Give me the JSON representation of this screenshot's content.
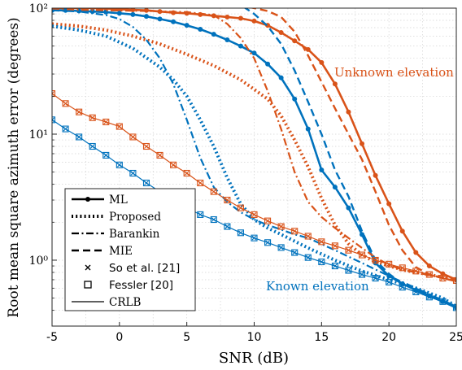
{
  "chart_data": {
    "type": "line",
    "xlabel": "SNR (dB)",
    "ylabel": "Root mean square azimuth error (degrees)",
    "xlim": [
      -5,
      25
    ],
    "ylim": [
      0.3,
      100
    ],
    "yscale": "log",
    "grid": true,
    "x_ticks": [
      -5,
      0,
      5,
      10,
      15,
      20,
      25
    ],
    "x_tick_labels": [
      "-5",
      "0",
      "5",
      "10",
      "15",
      "20",
      "25"
    ],
    "y_ticks": [
      1,
      10,
      100
    ],
    "y_tick_labels": [
      "10⁰",
      "10¹",
      "10²"
    ],
    "colors": {
      "unknown": "#D95319",
      "known": "#0072BD"
    },
    "annotations": [
      {
        "text": "Unknown elevation",
        "color": "#D95319"
      },
      {
        "text": "Known elevation",
        "color": "#0072BD"
      }
    ],
    "legend": {
      "placement": "bottom-left",
      "entries": [
        {
          "label": "ML",
          "line": "solid-thick",
          "marker": "dot"
        },
        {
          "label": "Proposed",
          "line": "dotted",
          "marker": "none"
        },
        {
          "label": "Barankin",
          "line": "dashdot",
          "marker": "none"
        },
        {
          "label": "MIE",
          "line": "dashed",
          "marker": "none"
        },
        {
          "label": "So et al. [21]",
          "line": "none",
          "marker": "x"
        },
        {
          "label": "Fessler [20]",
          "line": "none",
          "marker": "square"
        },
        {
          "label": "CRLB",
          "line": "solid-thin",
          "marker": "none"
        }
      ]
    },
    "series": [
      {
        "group": "unknown",
        "style": "ml",
        "x": [
          -5,
          -4,
          -3,
          -2,
          -1,
          0,
          1,
          2,
          3,
          4,
          5,
          6,
          7,
          8,
          9,
          10,
          11,
          12,
          13,
          14,
          15,
          16,
          17,
          18,
          19,
          20,
          21,
          22,
          23,
          24,
          25
        ],
        "values": [
          100,
          100,
          100,
          100,
          99,
          98,
          97,
          96,
          94,
          92,
          91,
          89,
          87,
          85,
          83,
          79,
          73,
          64,
          55,
          47,
          37,
          25,
          15,
          8.4,
          4.7,
          2.8,
          1.7,
          1.15,
          0.9,
          0.78,
          0.7
        ]
      },
      {
        "group": "known",
        "style": "ml",
        "x": [
          -5,
          -4,
          -3,
          -2,
          -1,
          0,
          1,
          2,
          3,
          4,
          5,
          6,
          7,
          8,
          9,
          10,
          11,
          12,
          13,
          14,
          15,
          16,
          17,
          18,
          19,
          20,
          21,
          22,
          23,
          24,
          25
        ],
        "values": [
          96,
          96,
          95,
          94,
          93,
          91,
          89,
          86,
          82,
          78,
          73,
          68,
          62,
          56,
          50,
          44,
          36,
          28,
          19,
          11,
          5.2,
          3.8,
          2.6,
          1.6,
          0.95,
          0.75,
          0.65,
          0.58,
          0.52,
          0.47,
          0.42
        ]
      },
      {
        "group": "unknown",
        "style": "proposed",
        "x": [
          -5,
          -3,
          -1,
          1,
          3,
          5,
          7,
          9,
          11,
          12,
          13,
          14,
          15,
          16,
          17,
          18,
          19,
          20,
          21,
          22,
          23,
          24,
          25
        ],
        "values": [
          75,
          72,
          67,
          60,
          52,
          43,
          35,
          27,
          19,
          14,
          9,
          5.5,
          3.1,
          1.9,
          1.35,
          1.1,
          0.97,
          0.9,
          0.84,
          0.8,
          0.77,
          0.73,
          0.7
        ]
      },
      {
        "group": "known",
        "style": "proposed",
        "x": [
          -5,
          -3,
          -1,
          1,
          3,
          4,
          5,
          6,
          7,
          8,
          9,
          10,
          11,
          12,
          14,
          16,
          18,
          20,
          22,
          24,
          25
        ],
        "values": [
          72,
          67,
          60,
          48,
          34,
          27,
          20,
          13,
          8,
          4.5,
          2.8,
          2.1,
          1.8,
          1.6,
          1.25,
          1.0,
          0.82,
          0.7,
          0.6,
          0.5,
          0.43
        ]
      },
      {
        "group": "unknown",
        "style": "barankin",
        "x": [
          -5,
          -1,
          2,
          5,
          7,
          8,
          9,
          10,
          11,
          12,
          13,
          14,
          15,
          16,
          17,
          18,
          19,
          20,
          21,
          22,
          23,
          24,
          25
        ],
        "values": [
          98,
          96,
          95,
          93,
          88,
          75,
          58,
          40,
          22,
          11,
          5,
          2.9,
          2.2,
          1.8,
          1.5,
          1.25,
          1.05,
          0.92,
          0.84,
          0.8,
          0.76,
          0.73,
          0.7
        ]
      },
      {
        "group": "known",
        "style": "barankin",
        "x": [
          -5,
          -3,
          -1,
          0,
          1,
          2,
          3,
          4,
          5,
          6,
          7,
          8,
          9,
          10,
          11,
          12,
          13,
          14,
          16,
          18,
          20,
          22,
          24,
          25
        ],
        "values": [
          96,
          94,
          88,
          82,
          71,
          56,
          40,
          25,
          13,
          6.5,
          3.8,
          2.9,
          2.4,
          2.1,
          1.9,
          1.75,
          1.6,
          1.5,
          1.2,
          0.95,
          0.75,
          0.6,
          0.48,
          0.43
        ]
      },
      {
        "group": "unknown",
        "style": "mie",
        "x": [
          8,
          9,
          10,
          11,
          12,
          13,
          14,
          15,
          16,
          17,
          18,
          19,
          20,
          21,
          22,
          23,
          24,
          25
        ],
        "values": [
          115,
          105,
          100,
          95,
          85,
          65,
          42,
          26,
          16,
          10,
          6.3,
          3.5,
          1.9,
          1.2,
          0.88,
          0.77,
          0.72,
          0.68
        ]
      },
      {
        "group": "known",
        "style": "mie",
        "x": [
          8.5,
          10,
          11,
          12,
          13,
          14,
          15,
          16,
          17,
          18,
          19,
          20,
          21,
          22,
          23,
          24,
          25
        ],
        "values": [
          115,
          90,
          72,
          52,
          32,
          18,
          10,
          5.2,
          3.2,
          1.7,
          1.0,
          0.78,
          0.65,
          0.58,
          0.52,
          0.47,
          0.42
        ]
      },
      {
        "group": "unknown",
        "style": "crlb",
        "x": [
          -5,
          -4,
          -3,
          -2,
          -1,
          0,
          1,
          2,
          3,
          4,
          5,
          6,
          7,
          8,
          9,
          10,
          11,
          12,
          13,
          14,
          15,
          16,
          17,
          18,
          19,
          20,
          21,
          22,
          23,
          24,
          25
        ],
        "values": [
          21,
          17.5,
          15,
          13.5,
          12.5,
          11.5,
          9.5,
          8,
          6.8,
          5.7,
          4.9,
          4.1,
          3.5,
          3.0,
          2.6,
          2.3,
          2.05,
          1.85,
          1.7,
          1.55,
          1.4,
          1.3,
          1.2,
          1.1,
          1.0,
          0.93,
          0.87,
          0.82,
          0.77,
          0.72,
          0.69
        ],
        "markers": [
          "square",
          "x"
        ]
      },
      {
        "group": "known",
        "style": "crlb",
        "x": [
          -5,
          -4,
          -3,
          -2,
          -1,
          0,
          1,
          2,
          3,
          4,
          5,
          6,
          7,
          8,
          9,
          10,
          11,
          12,
          13,
          14,
          15,
          16,
          17,
          18,
          19,
          20,
          21,
          22,
          23,
          24,
          25
        ],
        "values": [
          13,
          11,
          9.5,
          8,
          6.8,
          5.7,
          4.9,
          4.1,
          3.5,
          3.0,
          2.6,
          2.3,
          2.1,
          1.85,
          1.65,
          1.5,
          1.38,
          1.26,
          1.15,
          1.05,
          0.97,
          0.9,
          0.83,
          0.77,
          0.72,
          0.67,
          0.61,
          0.56,
          0.51,
          0.47,
          0.42
        ],
        "markers": [
          "square",
          "x"
        ]
      }
    ]
  }
}
